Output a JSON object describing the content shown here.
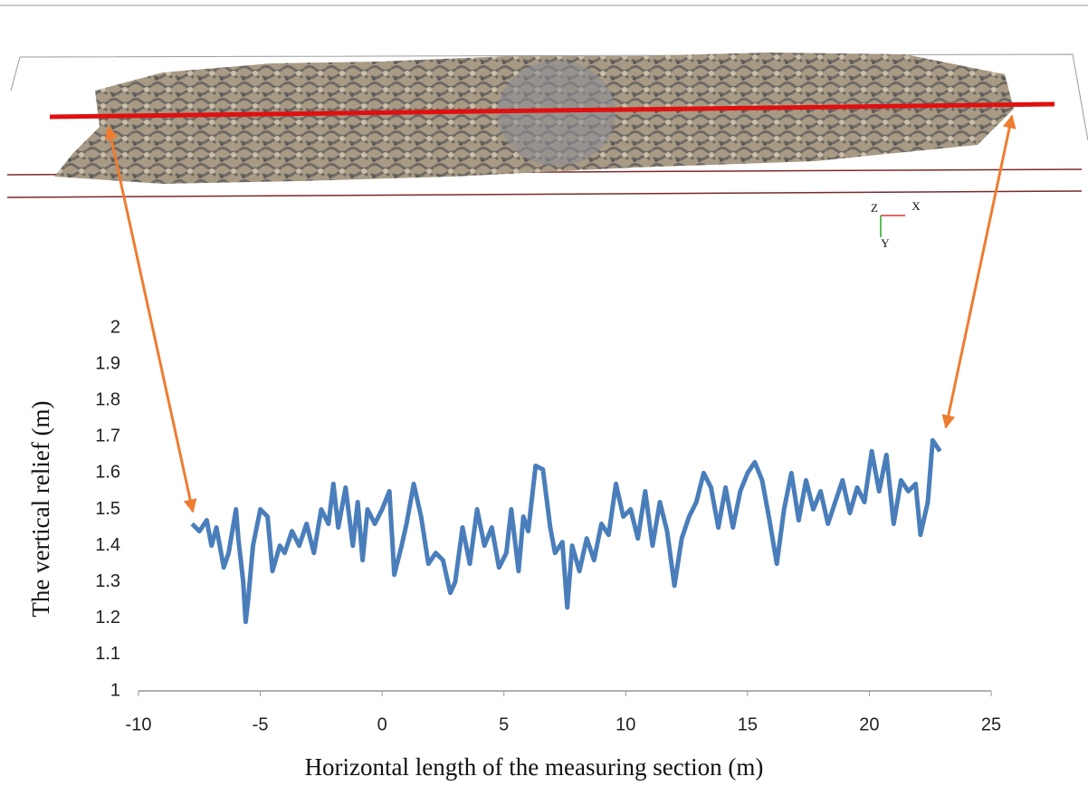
{
  "chart_data": {
    "type": "line",
    "xlabel": "Horizontal length of the measuring section (m)",
    "ylabel": "The vertical relief (m)",
    "annotations": [
      "Z",
      "X",
      "Y"
    ],
    "color": "#4a7ebb",
    "x": [
      -7.8,
      -7.5,
      -7.2,
      -7.0,
      -6.8,
      -6.5,
      -6.3,
      -6.0,
      -5.9,
      -5.7,
      -5.6,
      -5.5,
      -5.3,
      -5.0,
      -4.7,
      -4.5,
      -4.2,
      -4.0,
      -3.7,
      -3.4,
      -3.1,
      -2.8,
      -2.5,
      -2.2,
      -2.0,
      -1.8,
      -1.5,
      -1.2,
      -1.0,
      -0.8,
      -0.6,
      -0.3,
      0.0,
      0.3,
      0.5,
      0.8,
      1.0,
      1.3,
      1.6,
      1.9,
      2.2,
      2.5,
      2.8,
      3.0,
      3.3,
      3.6,
      3.9,
      4.2,
      4.5,
      4.8,
      5.1,
      5.3,
      5.6,
      5.8,
      6.0,
      6.3,
      6.6,
      6.9,
      7.1,
      7.4,
      7.6,
      7.8,
      8.1,
      8.4,
      8.7,
      9.0,
      9.3,
      9.6,
      9.9,
      10.2,
      10.5,
      10.8,
      11.1,
      11.4,
      11.7,
      12.0,
      12.3,
      12.6,
      12.9,
      13.2,
      13.5,
      13.8,
      14.1,
      14.4,
      14.7,
      15.0,
      15.3,
      15.6,
      15.9,
      16.2,
      16.5,
      16.8,
      17.1,
      17.4,
      17.7,
      18.0,
      18.3,
      18.6,
      18.9,
      19.2,
      19.5,
      19.8,
      20.1,
      20.4,
      20.7,
      21.0,
      21.3,
      21.6,
      21.9,
      22.1,
      22.4,
      22.6,
      22.9
    ],
    "values": [
      1.46,
      1.44,
      1.47,
      1.4,
      1.45,
      1.34,
      1.38,
      1.5,
      1.42,
      1.3,
      1.19,
      1.25,
      1.4,
      1.5,
      1.48,
      1.33,
      1.4,
      1.38,
      1.44,
      1.4,
      1.46,
      1.38,
      1.5,
      1.46,
      1.57,
      1.45,
      1.56,
      1.4,
      1.52,
      1.36,
      1.5,
      1.46,
      1.5,
      1.55,
      1.32,
      1.4,
      1.46,
      1.57,
      1.48,
      1.35,
      1.38,
      1.36,
      1.27,
      1.3,
      1.45,
      1.35,
      1.5,
      1.4,
      1.45,
      1.34,
      1.38,
      1.5,
      1.33,
      1.48,
      1.44,
      1.62,
      1.61,
      1.45,
      1.38,
      1.41,
      1.23,
      1.4,
      1.33,
      1.42,
      1.36,
      1.46,
      1.43,
      1.57,
      1.48,
      1.5,
      1.42,
      1.55,
      1.4,
      1.52,
      1.44,
      1.29,
      1.42,
      1.48,
      1.52,
      1.6,
      1.56,
      1.45,
      1.56,
      1.45,
      1.55,
      1.6,
      1.63,
      1.58,
      1.47,
      1.35,
      1.5,
      1.6,
      1.47,
      1.58,
      1.5,
      1.55,
      1.46,
      1.52,
      1.58,
      1.49,
      1.56,
      1.52,
      1.66,
      1.55,
      1.65,
      1.46,
      1.58,
      1.55,
      1.57,
      1.43,
      1.52,
      1.69,
      1.66
    ],
    "xlim": [
      -10,
      25
    ],
    "xticks": [
      -10,
      -5,
      0,
      5,
      10,
      15,
      20,
      25
    ],
    "ylim": [
      1,
      2
    ],
    "yticks": [
      1,
      1.1,
      1.2,
      1.3,
      1.4,
      1.5,
      1.6,
      1.7,
      1.8,
      1.9,
      2
    ],
    "grid": false
  }
}
